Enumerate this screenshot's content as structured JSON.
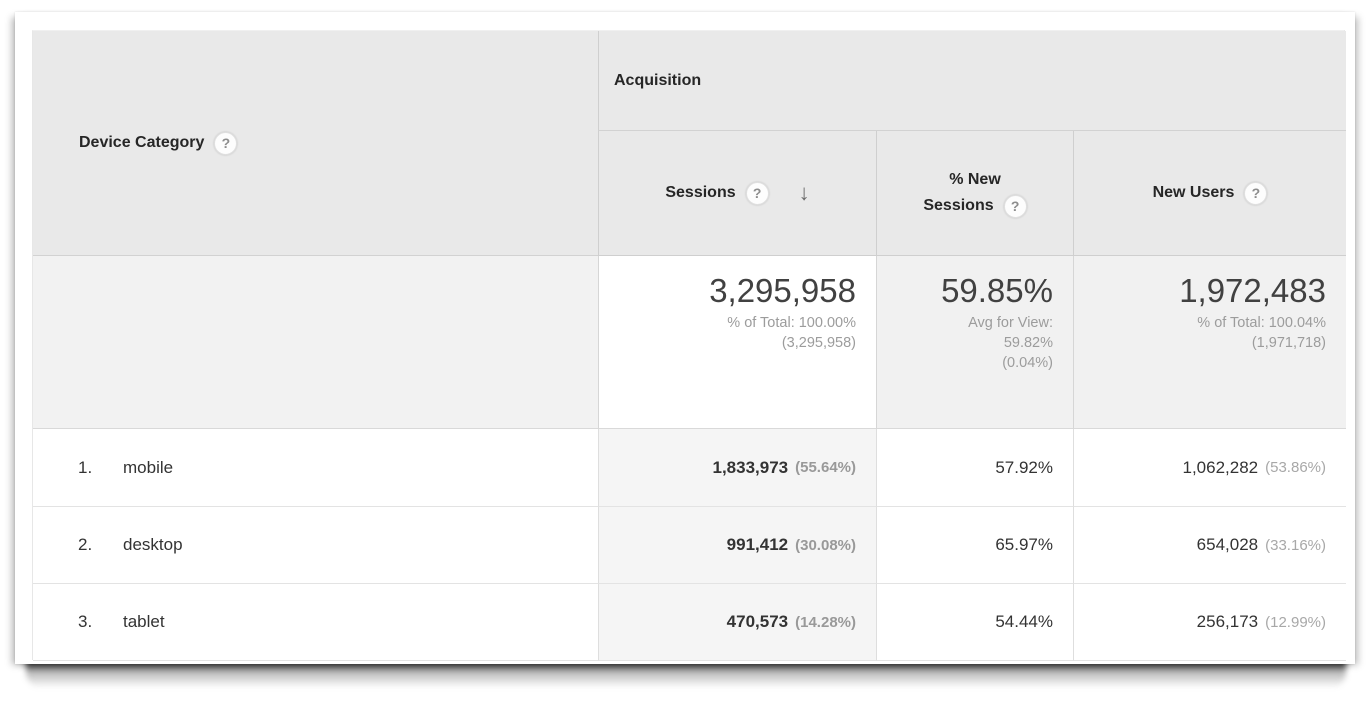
{
  "icons": {
    "help_glyph": "?",
    "sort_desc_glyph": "↓"
  },
  "colors": {
    "header_bg": "#e9e9e9",
    "summary_muted_bg": "#f2f2f2",
    "sorted_column_bg": "#f5f5f5",
    "divider": "#cfcfcf",
    "text_primary": "#333333",
    "text_muted": "#9c9c9c"
  },
  "table": {
    "dimension_header": {
      "label": "Device Category"
    },
    "group_header": {
      "label": "Acquisition"
    },
    "columns": [
      {
        "label": "Sessions",
        "sorted": "descending"
      },
      {
        "label_line1": "% New",
        "label_line2": "Sessions"
      },
      {
        "label": "New Users"
      }
    ],
    "summary": {
      "sessions": {
        "value": "3,295,958",
        "subtext": "% of Total: 100.00%\n(3,295,958)"
      },
      "pct_new_sessions": {
        "value": "59.85%",
        "subtext": "Avg for View:\n59.82%\n(0.04%)"
      },
      "new_users": {
        "value": "1,972,483",
        "subtext": "% of Total: 100.04%\n(1,971,718)"
      }
    },
    "rows": [
      {
        "rank": "1.",
        "device": "mobile",
        "sessions": "1,833,973",
        "sessions_share": "(55.64%)",
        "pct_new_sessions": "57.92%",
        "new_users": "1,062,282",
        "new_users_share": "(53.86%)"
      },
      {
        "rank": "2.",
        "device": "desktop",
        "sessions": "991,412",
        "sessions_share": "(30.08%)",
        "pct_new_sessions": "65.97%",
        "new_users": "654,028",
        "new_users_share": "(33.16%)"
      },
      {
        "rank": "3.",
        "device": "tablet",
        "sessions": "470,573",
        "sessions_share": "(14.28%)",
        "pct_new_sessions": "54.44%",
        "new_users": "256,173",
        "new_users_share": "(12.99%)"
      }
    ]
  }
}
